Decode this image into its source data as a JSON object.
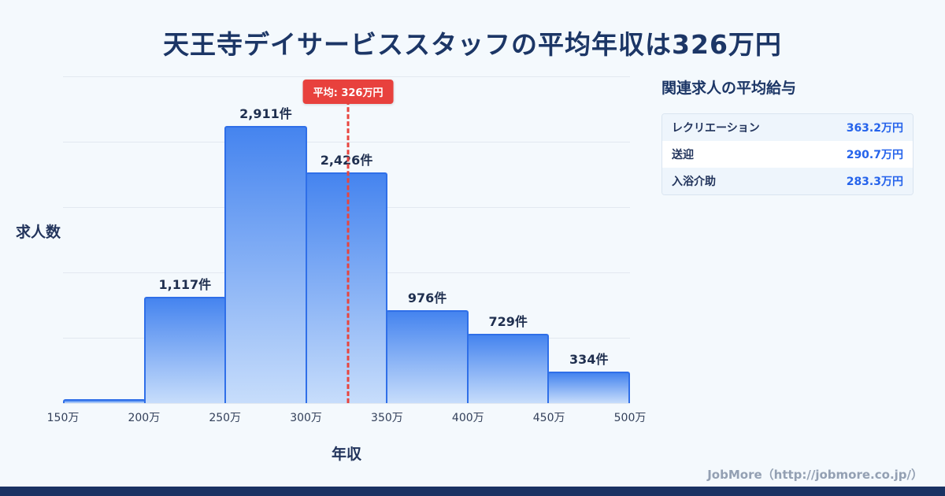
{
  "page": {
    "title": "天王寺デイサービススタッフの平均年収は326万円",
    "footer": "JobMore（http://jobmore.co.jp/）",
    "accent_navy": "#1a3263",
    "accent_blue": "#2563eb",
    "accent_red": "#e8413d",
    "bar_fill_top": "#4584ef",
    "bar_fill_bottom": "#c7ddfb",
    "bar_border": "#2f6fe8"
  },
  "chart_data": {
    "type": "bar",
    "title": "天王寺デイサービススタッフの平均年収は326万円",
    "xlabel": "年収",
    "ylabel": "求人数",
    "bin_edges_labels": [
      "150万",
      "200万",
      "250万",
      "300万",
      "350万",
      "400万",
      "450万",
      "500万"
    ],
    "values": [
      40,
      1117,
      2911,
      2426,
      976,
      729,
      334
    ],
    "bar_labels": [
      "",
      "1,117件",
      "2,911件",
      "2,426件",
      "976件",
      "729件",
      "334件"
    ],
    "average": {
      "value": 326,
      "label": "平均: 326万円"
    },
    "x_range": [
      150,
      500
    ],
    "ylim": [
      0,
      3430
    ],
    "grid": true,
    "legend": "none"
  },
  "related": {
    "heading": "関連求人の平均給与",
    "rows": [
      {
        "label": "レクリエーション",
        "value": "363.2万円"
      },
      {
        "label": "送迎",
        "value": "290.7万円"
      },
      {
        "label": "入浴介助",
        "value": "283.3万円"
      }
    ]
  }
}
